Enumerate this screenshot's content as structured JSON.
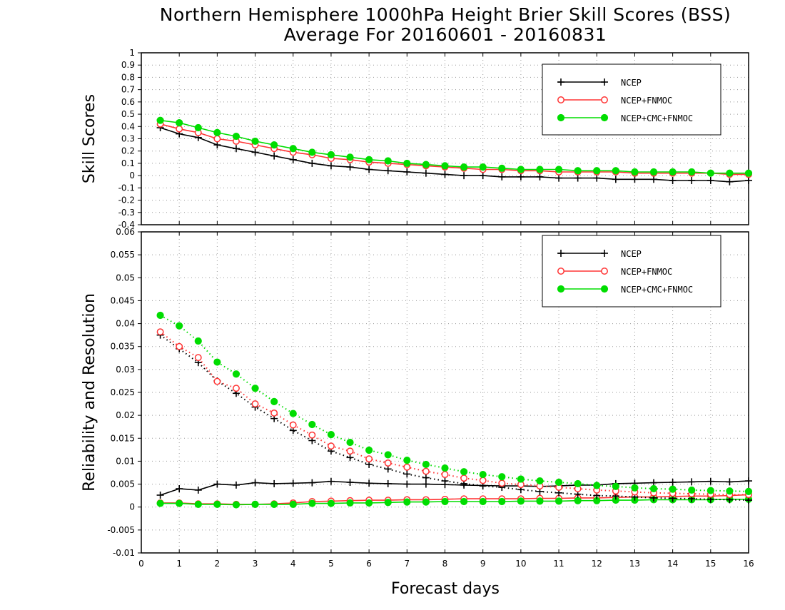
{
  "titles": [
    "Northern Hemisphere 1000hPa Height Brier Skill Scores (BSS)",
    "Average For 20160601 - 20160831"
  ],
  "chart_data": {
    "type": "line",
    "shared_x": {
      "xlabel": "Forecast days",
      "xlim": [
        0,
        16
      ],
      "ticks": [
        0,
        1,
        2,
        3,
        4,
        5,
        6,
        7,
        8,
        9,
        10,
        11,
        12,
        13,
        14,
        15,
        16
      ],
      "x": [
        0.5,
        1,
        1.5,
        2,
        2.5,
        3,
        3.5,
        4,
        4.5,
        5,
        5.5,
        6,
        6.5,
        7,
        7.5,
        8,
        8.5,
        9,
        9.5,
        10,
        10.5,
        11,
        11.5,
        12,
        12.5,
        13,
        13.5,
        14,
        14.5,
        15,
        15.5,
        16
      ]
    },
    "panels": [
      {
        "name": "bss",
        "ylabel": "Skill Scores",
        "ylim": [
          -0.4,
          1
        ],
        "yticks": [
          -0.4,
          -0.3,
          -0.2,
          -0.1,
          0,
          0.1,
          0.2,
          0.3,
          0.4,
          0.5,
          0.6,
          0.7,
          0.8,
          0.9,
          1
        ],
        "ytick_labels": [
          "-0.4",
          "-0.3",
          "-0.2",
          "-0.1",
          "0",
          "0.1",
          "0.2",
          "0.3",
          "0.4",
          "0.5",
          "0.6",
          "0.7",
          "0.8",
          "0.9",
          "1"
        ],
        "grid": true,
        "legend": "top-right",
        "series": [
          {
            "name": "NCEP",
            "style": "solid",
            "marker": "plus",
            "color": "#000000",
            "values": [
              0.39,
              0.34,
              0.31,
              0.25,
              0.22,
              0.19,
              0.16,
              0.13,
              0.1,
              0.08,
              0.07,
              0.05,
              0.04,
              0.03,
              0.02,
              0.01,
              0.0,
              0.0,
              -0.01,
              -0.01,
              -0.01,
              -0.02,
              -0.02,
              -0.02,
              -0.03,
              -0.03,
              -0.03,
              -0.04,
              -0.04,
              -0.04,
              -0.05,
              -0.04
            ]
          },
          {
            "name": "NCEP+FNMOC",
            "style": "solid",
            "marker": "open-circle",
            "color": "#ff3333",
            "values": [
              0.42,
              0.38,
              0.35,
              0.3,
              0.28,
              0.25,
              0.22,
              0.19,
              0.17,
              0.14,
              0.13,
              0.11,
              0.1,
              0.09,
              0.08,
              0.07,
              0.06,
              0.05,
              0.05,
              0.04,
              0.04,
              0.03,
              0.03,
              0.03,
              0.03,
              0.02,
              0.02,
              0.02,
              0.02,
              0.02,
              0.01,
              0.01
            ]
          },
          {
            "name": "NCEP+CMC+FNMOC",
            "style": "solid",
            "marker": "filled-circle",
            "color": "#00dd00",
            "values": [
              0.45,
              0.43,
              0.39,
              0.35,
              0.32,
              0.28,
              0.25,
              0.22,
              0.19,
              0.17,
              0.15,
              0.13,
              0.12,
              0.1,
              0.09,
              0.08,
              0.07,
              0.07,
              0.06,
              0.05,
              0.05,
              0.05,
              0.04,
              0.04,
              0.04,
              0.03,
              0.03,
              0.03,
              0.03,
              0.02,
              0.02,
              0.02
            ]
          }
        ]
      },
      {
        "name": "reliability-resolution",
        "ylabel": "Reliability and Resolution",
        "ylim": [
          -0.01,
          0.06
        ],
        "yticks": [
          -0.01,
          -0.005,
          0,
          0.005,
          0.01,
          0.015,
          0.02,
          0.025,
          0.03,
          0.035,
          0.04,
          0.045,
          0.05,
          0.055,
          0.06
        ],
        "ytick_labels": [
          "-0.01",
          "-0.005",
          "0",
          "0.005",
          "0.01",
          "0.015",
          "0.02",
          "0.025",
          "0.03",
          "0.035",
          "0.04",
          "0.045",
          "0.05",
          "0.055",
          "0.06"
        ],
        "grid": true,
        "legend": "top-right",
        "series": [
          {
            "name": "NCEP",
            "style": "solid",
            "marker": "plus",
            "color": "#000000",
            "legend": true,
            "values": [
              0.0026,
              0.004,
              0.0037,
              0.005,
              0.0048,
              0.0053,
              0.0051,
              0.0052,
              0.0053,
              0.0056,
              0.0054,
              0.0052,
              0.0051,
              0.005,
              0.005,
              0.0049,
              0.0048,
              0.0047,
              0.0046,
              0.0046,
              0.0045,
              0.0046,
              0.0048,
              0.0048,
              0.0051,
              0.0052,
              0.0053,
              0.0054,
              0.0055,
              0.0056,
              0.0055,
              0.0057
            ]
          },
          {
            "name": "NCEP+FNMOC",
            "style": "solid",
            "marker": "open-circle",
            "color": "#ff3333",
            "legend": true,
            "values": [
              0.0009,
              0.0009,
              0.0007,
              0.0007,
              0.0006,
              0.0006,
              0.0007,
              0.0009,
              0.0012,
              0.0013,
              0.0014,
              0.0015,
              0.0015,
              0.0016,
              0.0016,
              0.0017,
              0.0018,
              0.0018,
              0.0018,
              0.0018,
              0.0019,
              0.0019,
              0.002,
              0.002,
              0.0021,
              0.0022,
              0.0022,
              0.0023,
              0.0024,
              0.0024,
              0.0025,
              0.0027
            ]
          },
          {
            "name": "NCEP+CMC+FNMOC",
            "style": "solid",
            "marker": "filled-circle",
            "color": "#00dd00",
            "legend": true,
            "values": [
              0.0008,
              0.0008,
              0.0006,
              0.0006,
              0.0005,
              0.0006,
              0.0006,
              0.0006,
              0.0008,
              0.0008,
              0.0009,
              0.0009,
              0.001,
              0.0011,
              0.0011,
              0.0012,
              0.0012,
              0.0012,
              0.0012,
              0.0013,
              0.0013,
              0.0013,
              0.0014,
              0.0014,
              0.0015,
              0.0015,
              0.0016,
              0.0016,
              0.0016,
              0.0016,
              0.0017,
              0.0017
            ]
          },
          {
            "name": "NCEP",
            "style": "dotted",
            "marker": "plus",
            "color": "#000000",
            "legend": false,
            "values": [
              0.0375,
              0.0345,
              0.0315,
              0.0275,
              0.0248,
              0.0218,
              0.0193,
              0.0167,
              0.0145,
              0.0122,
              0.0108,
              0.0093,
              0.0083,
              0.0072,
              0.0064,
              0.0057,
              0.0051,
              0.0046,
              0.0043,
              0.0038,
              0.0034,
              0.0031,
              0.0028,
              0.0025,
              0.0024,
              0.0022,
              0.002,
              0.0019,
              0.0018,
              0.0017,
              0.0016,
              0.0015
            ]
          },
          {
            "name": "NCEP+FNMOC",
            "style": "dotted",
            "marker": "open-circle",
            "color": "#ff3333",
            "legend": false,
            "values": [
              0.0382,
              0.035,
              0.0326,
              0.0274,
              0.0259,
              0.0225,
              0.0205,
              0.0179,
              0.0157,
              0.0133,
              0.0122,
              0.0105,
              0.0096,
              0.0087,
              0.0078,
              0.0071,
              0.0063,
              0.0058,
              0.0052,
              0.0049,
              0.0046,
              0.0043,
              0.004,
              0.0037,
              0.0035,
              0.0033,
              0.0031,
              0.003,
              0.0029,
              0.0028,
              0.0027,
              0.0027
            ]
          },
          {
            "name": "NCEP+CMC+FNMOC",
            "style": "dotted",
            "marker": "filled-circle",
            "color": "#00dd00",
            "legend": false,
            "values": [
              0.0418,
              0.0395,
              0.0362,
              0.0316,
              0.029,
              0.0259,
              0.023,
              0.0204,
              0.018,
              0.0158,
              0.0141,
              0.0124,
              0.0114,
              0.0102,
              0.0093,
              0.0085,
              0.0077,
              0.0071,
              0.0066,
              0.0061,
              0.0057,
              0.0054,
              0.0051,
              0.0047,
              0.0045,
              0.0042,
              0.004,
              0.0039,
              0.0037,
              0.0036,
              0.0035,
              0.0034
            ]
          }
        ]
      }
    ]
  }
}
